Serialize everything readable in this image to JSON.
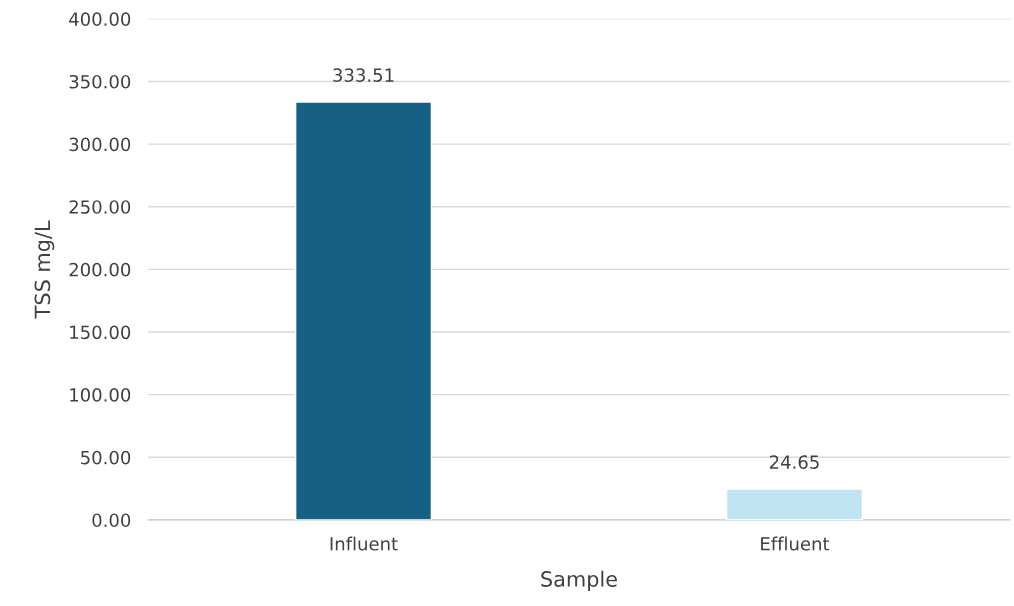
{
  "chart_data": {
    "type": "bar",
    "xlabel": "Sample",
    "ylabel": "TSS mg/L",
    "categories": [
      "Influent",
      "Effluent"
    ],
    "values": [
      333.51,
      24.65
    ],
    "colors": [
      "#166083",
      "#c1e4f5"
    ],
    "data_labels": true,
    "ylim": [
      0,
      400
    ],
    "yticks": [
      {
        "value": 0,
        "label": "0.00"
      },
      {
        "value": 50,
        "label": "50.00"
      },
      {
        "value": 100,
        "label": "100.00"
      },
      {
        "value": 150,
        "label": "150.00"
      },
      {
        "value": 200,
        "label": "200.00"
      },
      {
        "value": 250,
        "label": "250.00"
      },
      {
        "value": 300,
        "label": "300.00"
      },
      {
        "value": 350,
        "label": "350.00"
      },
      {
        "value": 400,
        "label": "400.00"
      }
    ],
    "grid": "y",
    "legend": false
  }
}
